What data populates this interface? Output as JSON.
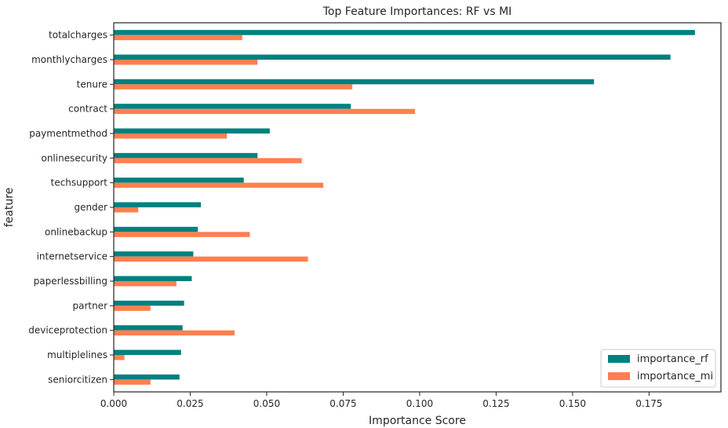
{
  "chart_data": {
    "type": "bar",
    "orientation": "horizontal",
    "title": "Top Feature Importances: RF vs MI",
    "xlabel": "Importance Score",
    "ylabel": "feature",
    "xlim": [
      0.0,
      0.1985
    ],
    "xticks": [
      "0.000",
      "0.025",
      "0.050",
      "0.075",
      "0.100",
      "0.125",
      "0.150",
      "0.175"
    ],
    "grid": false,
    "legend_position": "bottom-right",
    "categories": [
      "totalcharges",
      "monthlycharges",
      "tenure",
      "contract",
      "paymentmethod",
      "onlinesecurity",
      "techsupport",
      "gender",
      "onlinebackup",
      "internetservice",
      "paperlessbilling",
      "partner",
      "deviceprotection",
      "multiplelines",
      "seniorcitizen"
    ],
    "series": [
      {
        "name": "importance_rf",
        "color": "#008080",
        "values": [
          0.19,
          0.182,
          0.157,
          0.0775,
          0.051,
          0.047,
          0.0425,
          0.0285,
          0.0275,
          0.026,
          0.0255,
          0.023,
          0.0225,
          0.022,
          0.0215
        ]
      },
      {
        "name": "importance_mi",
        "color": "#ff7f50",
        "values": [
          0.042,
          0.047,
          0.078,
          0.0985,
          0.037,
          0.0615,
          0.0685,
          0.008,
          0.0445,
          0.0635,
          0.0205,
          0.012,
          0.0395,
          0.0035,
          0.012
        ]
      }
    ]
  }
}
